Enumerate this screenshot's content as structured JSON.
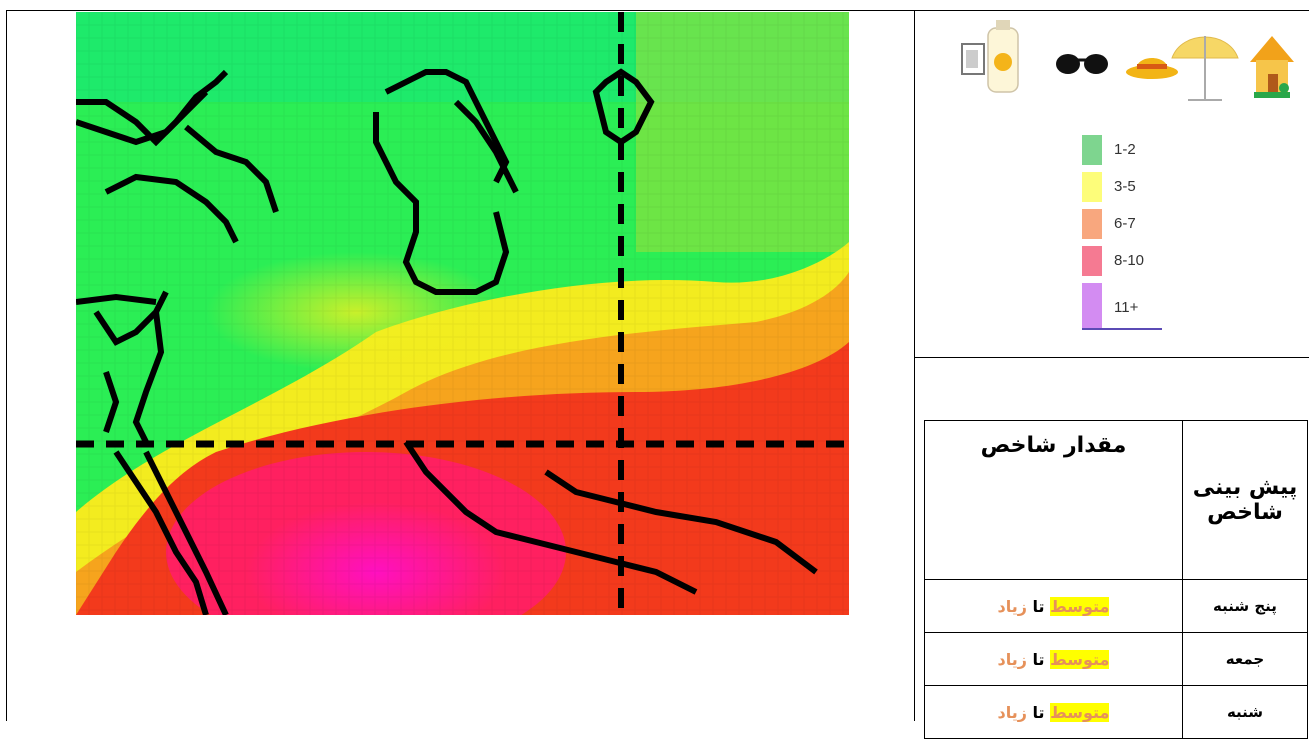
{
  "icons": [
    "house-icon",
    "beach-umbrella-icon",
    "sun-hat-icon",
    "sunglasses-icon",
    "sunscreen-icon"
  ],
  "legend": [
    {
      "label": "1-2",
      "color": "#7ed58f"
    },
    {
      "label": "3-5",
      "color": "#fdfd7a"
    },
    {
      "label": "6-7",
      "color": "#f8a77e"
    },
    {
      "label": "8-10",
      "color": "#f57a92"
    },
    {
      "label": "11+",
      "color": "#d38cf2"
    }
  ],
  "table": {
    "header_day": "پیش بینی شاخص",
    "header_value": "مقدار شاخص",
    "rows": [
      {
        "day": "پنج شنبه",
        "level": "متوسط",
        "joiner": "تا",
        "level2": "زیاد"
      },
      {
        "day": "جمعه",
        "level": "متوسط",
        "joiner": "تا",
        "level2": "زیاد"
      },
      {
        "day": "شنبه",
        "level": "متوسط",
        "joiner": "تا",
        "level2": "زیاد"
      }
    ]
  }
}
